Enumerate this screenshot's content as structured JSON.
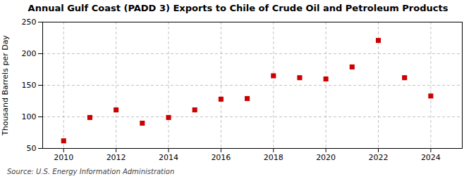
{
  "chart_data": {
    "type": "scatter",
    "title": "Annual Gulf Coast (PADD 3) Exports to Chile of Crude Oil and Petroleum Products",
    "ylabel": "Thousand Barrels per Day",
    "source": "Source: U.S. Energy Information Administration",
    "x": [
      2010,
      2011,
      2012,
      2013,
      2014,
      2015,
      2016,
      2017,
      2018,
      2019,
      2020,
      2021,
      2022,
      2023,
      2024
    ],
    "values": [
      62,
      99,
      111,
      90,
      99,
      111,
      128,
      129,
      165,
      162,
      160,
      179,
      221,
      162,
      133
    ],
    "color": "#CC0000",
    "marker": "square",
    "xlim": [
      2009.2,
      2025.2
    ],
    "xticks": [
      2010,
      2012,
      2014,
      2016,
      2018,
      2020,
      2022,
      2024
    ],
    "ylim": [
      50,
      250
    ],
    "yticks": [
      50,
      100,
      150,
      200,
      250
    ],
    "grid": true
  }
}
